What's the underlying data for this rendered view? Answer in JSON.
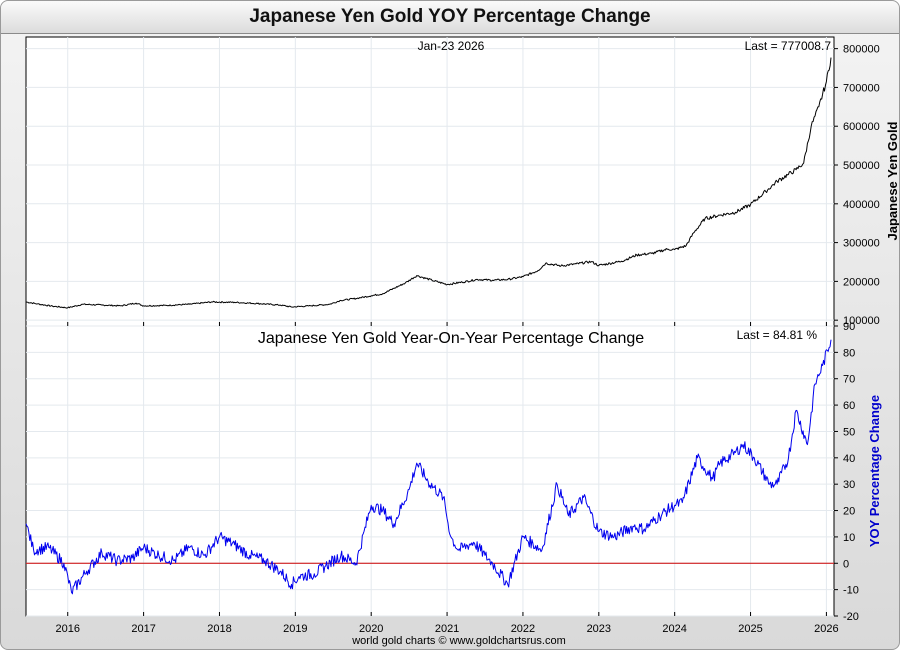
{
  "page_title": "Japanese Yen Gold YOY Percentage Change",
  "colors": {
    "price_line": "#000000",
    "yoy_line": "#0000ee",
    "zero_line": "#cc0000",
    "grid": "#e4e9ee",
    "yoy_axis_label": "#0000cc"
  },
  "chart_data": [
    {
      "type": "line",
      "title": "",
      "date_label": "Jan-23  2026",
      "last_label": "Last = 777008.7",
      "ylabel": "Japanese Yen Gold",
      "xlim": [
        2015.45,
        2026.1
      ],
      "ylim": [
        85000,
        830000
      ],
      "x_ticks": [
        2016,
        2017,
        2018,
        2019,
        2020,
        2021,
        2022,
        2023,
        2024,
        2025,
        2026
      ],
      "y_ticks": [
        100000,
        200000,
        300000,
        400000,
        500000,
        600000,
        700000,
        800000
      ],
      "y_tick_labels": [
        "100000",
        "200000",
        "300000",
        "400000",
        "500000",
        "600000",
        "700000",
        "800000"
      ],
      "series": [
        {
          "name": "Japanese Yen Gold",
          "x": [
            2015.45,
            2015.6,
            2015.8,
            2016.0,
            2016.2,
            2016.45,
            2016.7,
            2016.9,
            2017.0,
            2017.3,
            2017.6,
            2017.9,
            2018.2,
            2018.5,
            2018.8,
            2018.95,
            2019.2,
            2019.45,
            2019.6,
            2019.8,
            2020.0,
            2020.15,
            2020.3,
            2020.45,
            2020.6,
            2020.8,
            2021.0,
            2021.2,
            2021.4,
            2021.6,
            2021.8,
            2022.0,
            2022.2,
            2022.3,
            2022.5,
            2022.7,
            2022.9,
            2023.0,
            2023.3,
            2023.5,
            2023.7,
            2023.9,
            2024.0,
            2024.15,
            2024.25,
            2024.4,
            2024.6,
            2024.8,
            2025.0,
            2025.2,
            2025.35,
            2025.5,
            2025.6,
            2025.7,
            2025.8,
            2025.9,
            2026.0,
            2026.06
          ],
          "y": [
            147000,
            142000,
            136000,
            132000,
            141000,
            139000,
            137000,
            144000,
            137000,
            138000,
            141000,
            147000,
            146000,
            143000,
            139000,
            134000,
            137000,
            141000,
            151000,
            156000,
            163000,
            168000,
            182000,
            196000,
            215000,
            203000,
            192000,
            198000,
            205000,
            203000,
            205000,
            212000,
            228000,
            247000,
            240000,
            245000,
            251000,
            241000,
            252000,
            268000,
            272000,
            283000,
            282000,
            292000,
            325000,
            362000,
            371000,
            378000,
            398000,
            432000,
            458000,
            476000,
            488000,
            505000,
            600000,
            650000,
            715000,
            777008.7
          ]
        }
      ]
    },
    {
      "type": "line",
      "title": "Japanese Yen Gold Year-On-Year Percentage Change",
      "last_label": "Last = 84.81 %",
      "ylabel": "YOY Percentage Change",
      "xlim": [
        2015.45,
        2026.1
      ],
      "ylim": [
        -20,
        90
      ],
      "x_ticks": [
        2016,
        2017,
        2018,
        2019,
        2020,
        2021,
        2022,
        2023,
        2024,
        2025,
        2026
      ],
      "x_tick_labels": [
        "2016",
        "2017",
        "2018",
        "2019",
        "2020",
        "2021",
        "2022",
        "2023",
        "2024",
        "2025",
        "2026"
      ],
      "y_ticks": [
        -20,
        -10,
        0,
        10,
        20,
        30,
        40,
        50,
        60,
        70,
        80,
        90
      ],
      "y_tick_labels": [
        "-20",
        "-10",
        "0",
        "10",
        "20",
        "30",
        "40",
        "50",
        "60",
        "70",
        "80",
        "90"
      ],
      "reference_line": 0,
      "series": [
        {
          "name": "YOY Percentage Change",
          "x": [
            2015.45,
            2015.55,
            2015.75,
            2015.95,
            2016.05,
            2016.25,
            2016.45,
            2016.65,
            2016.85,
            2017.0,
            2017.2,
            2017.4,
            2017.6,
            2017.8,
            2018.0,
            2018.2,
            2018.4,
            2018.6,
            2018.8,
            2018.95,
            2019.05,
            2019.25,
            2019.4,
            2019.6,
            2019.8,
            2020.0,
            2020.15,
            2020.3,
            2020.5,
            2020.6,
            2020.75,
            2020.95,
            2021.05,
            2021.15,
            2021.35,
            2021.5,
            2021.6,
            2021.8,
            2022.0,
            2022.25,
            2022.45,
            2022.6,
            2022.8,
            2023.0,
            2023.2,
            2023.45,
            2023.6,
            2023.8,
            2024.0,
            2024.1,
            2024.3,
            2024.5,
            2024.6,
            2024.8,
            2024.9,
            2025.05,
            2025.25,
            2025.35,
            2025.5,
            2025.6,
            2025.75,
            2025.85,
            2025.95,
            2026.06
          ],
          "y": [
            15,
            5,
            6,
            0,
            -11,
            -3,
            4,
            1,
            2,
            6,
            3,
            1,
            6,
            3,
            10,
            7,
            3,
            1,
            -3,
            -8,
            -5,
            -4,
            -1,
            3,
            0,
            22,
            20,
            15,
            28,
            38,
            31,
            25,
            10,
            5,
            8,
            3,
            0,
            -8,
            10,
            5,
            30,
            18,
            25,
            12,
            10,
            14,
            13,
            18,
            22,
            23,
            40,
            32,
            38,
            42,
            45,
            40,
            30,
            30,
            40,
            58,
            45,
            68,
            75,
            84.81
          ]
        }
      ]
    }
  ],
  "footer_text": "world gold charts © www.goldchartsrus.com"
}
